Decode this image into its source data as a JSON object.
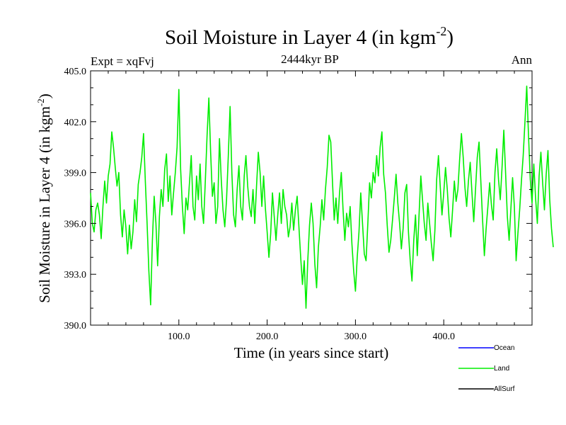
{
  "chart_data": {
    "type": "line",
    "title_main": "Soil Moisture in Layer 4 (in kgm",
    "title_sup": "-2",
    "title_close": ")",
    "subtitle": "2444kyr BP",
    "left_label": "Expt = xqFvj",
    "right_label": "Ann",
    "xlabel": "Time (in years since start)",
    "ylabel_main": "Soil Moisture in Layer 4 (in kgm",
    "ylabel_sup": "-2",
    "ylabel_close": ")",
    "xlim": [
      0,
      500
    ],
    "ylim": [
      390,
      405
    ],
    "x_ticks": [
      100,
      200,
      300,
      400
    ],
    "x_tick_labels": [
      "100.0",
      "200.0",
      "300.0",
      "400.0"
    ],
    "y_ticks": [
      390,
      393,
      396,
      399,
      402,
      405
    ],
    "y_tick_labels": [
      "390.0",
      "393.0",
      "396.0",
      "399.0",
      "402.0",
      "405.0"
    ],
    "legend": [
      {
        "name": "Ocean",
        "color": "#0000ff"
      },
      {
        "name": "Land",
        "color": "#00ee00"
      },
      {
        "name": "AllSurf",
        "color": "#000000"
      }
    ],
    "series": [
      {
        "name": "Land",
        "color": "#00ee00",
        "x_start": 0,
        "x_step": 2,
        "values": [
          397.8,
          396.0,
          395.5,
          396.8,
          397.2,
          396.5,
          395.1,
          397.0,
          398.5,
          397.2,
          398.8,
          399.5,
          401.4,
          400.5,
          399.3,
          398.2,
          399.0,
          396.5,
          395.2,
          396.8,
          395.8,
          394.2,
          395.9,
          394.5,
          395.5,
          397.4,
          396.1,
          398.3,
          399.0,
          399.9,
          401.3,
          398.5,
          396.0,
          393.2,
          391.2,
          395.0,
          397.6,
          396.0,
          393.5,
          396.4,
          398.0,
          397.0,
          399.2,
          400.1,
          397.3,
          398.8,
          396.5,
          397.8,
          399.0,
          400.5,
          403.9,
          399.2,
          397.0,
          395.4,
          397.5,
          396.8,
          398.4,
          400.0,
          397.0,
          396.2,
          398.8,
          397.4,
          399.5,
          397.0,
          396.0,
          398.5,
          401.2,
          403.4,
          400.2,
          397.6,
          398.4,
          396.0,
          397.0,
          401.0,
          398.6,
          396.8,
          395.8,
          397.4,
          400.0,
          402.9,
          399.0,
          396.5,
          395.8,
          398.0,
          399.4,
          397.0,
          396.2,
          398.8,
          400.0,
          398.2,
          397.0,
          396.4,
          398.0,
          396.0,
          398.2,
          400.2,
          399.0,
          397.0,
          398.8,
          396.9,
          395.5,
          394.0,
          395.4,
          397.8,
          396.4,
          395.0,
          396.5,
          397.8,
          396.0,
          398.0,
          397.0,
          396.5,
          395.2,
          395.8,
          397.2,
          395.6,
          396.8,
          397.6,
          395.8,
          394.0,
          392.4,
          393.8,
          391.0,
          393.8,
          395.9,
          397.2,
          396.0,
          393.6,
          392.2,
          394.6,
          395.8,
          397.4,
          396.2,
          398.0,
          399.3,
          401.2,
          400.8,
          398.4,
          396.2,
          397.5,
          396.0,
          397.8,
          399.0,
          396.8,
          395.0,
          396.6,
          395.8,
          397.0,
          394.8,
          393.2,
          392.0,
          394.0,
          395.5,
          397.8,
          396.0,
          394.2,
          393.8,
          396.0,
          398.4,
          397.5,
          399.0,
          398.4,
          400.0,
          398.8,
          400.5,
          401.4,
          398.9,
          397.8,
          395.9,
          394.3,
          395.0,
          396.2,
          397.5,
          398.9,
          397.2,
          396.0,
          394.5,
          395.7,
          397.8,
          398.3,
          395.5,
          393.8,
          392.6,
          395.0,
          396.5,
          394.1,
          396.5,
          398.8,
          397.4,
          396.0,
          395.0,
          397.2,
          396.0,
          394.8,
          393.8,
          395.6,
          398.6,
          400.0,
          398.2,
          396.5,
          397.8,
          399.3,
          398.0,
          396.3,
          395.2,
          396.8,
          398.5,
          397.3,
          398.0,
          399.8,
          401.3,
          399.9,
          398.1,
          397.0,
          398.5,
          399.6,
          397.8,
          396.1,
          398.0,
          399.9,
          400.8,
          398.5,
          396.2,
          394.1,
          395.7,
          397.0,
          398.4,
          397.1,
          396.2,
          399.0,
          400.4,
          398.6,
          397.4,
          399.3,
          401.5,
          399.0,
          396.4,
          395.0,
          396.8,
          398.7,
          397.0,
          393.8,
          395.4,
          396.8,
          398.5,
          400.0,
          402.0,
          404.1,
          401.2,
          398.6,
          397.2,
          399.5,
          397.5,
          396.0,
          398.8,
          400.2,
          398.4,
          396.8,
          398.9,
          400.3,
          397.4,
          395.7,
          394.6
        ]
      }
    ]
  }
}
